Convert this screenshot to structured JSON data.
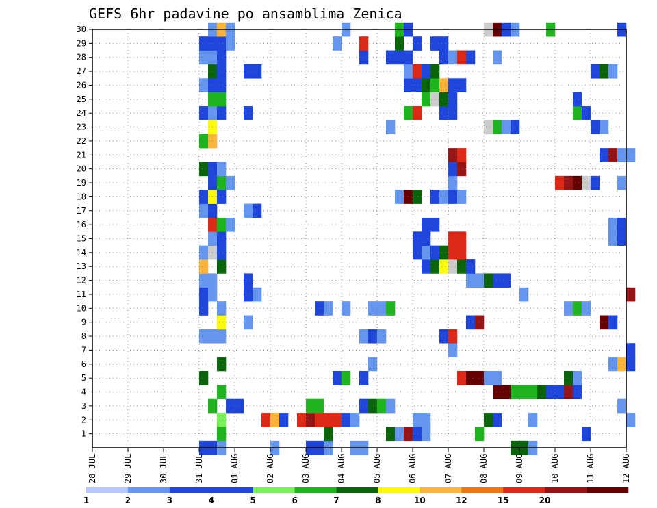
{
  "chart_data": {
    "type": "heatmap",
    "title": "GEFS 6hr padavine po ansamblima Zenica",
    "x_tick_labels": [
      "28 JUL",
      "29 JUL",
      "30 JUL",
      "31 JUL",
      "01 AUG",
      "02 AUG",
      "03 AUG",
      "04 AUG",
      "05 AUG",
      "06 AUG",
      "07 AUG",
      "08 AUG",
      "09 AUG",
      "10 AUG",
      "11 AUG",
      "12 AUG"
    ],
    "x_steps_per_day": 4,
    "y_tick_labels": [
      "1",
      "2",
      "3",
      "4",
      "5",
      "6",
      "7",
      "8",
      "9",
      "10",
      "11",
      "12",
      "13",
      "14",
      "15",
      "16",
      "17",
      "18",
      "19",
      "20",
      "21",
      "22",
      "23",
      "24",
      "25",
      "26",
      "27",
      "28",
      "29",
      "30"
    ],
    "ylim": [
      0,
      30
    ],
    "grid": true,
    "colorbar": {
      "labels": [
        "1",
        "2",
        "3",
        "4",
        "5",
        "6",
        "7",
        "8",
        "10",
        "12",
        "15",
        "20"
      ],
      "colors": [
        "#b4c8fa",
        "#6496f0",
        "#1e46dc",
        "#1e46dc",
        "#78f05a",
        "#1eb41e",
        "#0a640a",
        "#fafa0a",
        "#fab43c",
        "#f07814",
        "#dc2814",
        "#961414",
        "#640000"
      ]
    },
    "cells": [
      [
        0,
        12,
        3
      ],
      [
        0,
        13,
        2
      ],
      [
        0,
        14,
        1
      ],
      [
        0,
        20,
        1
      ],
      [
        0,
        24,
        2
      ],
      [
        0,
        25,
        2
      ],
      [
        0,
        26,
        1
      ],
      [
        0,
        29,
        1
      ],
      [
        0,
        30,
        1
      ],
      [
        1,
        14,
        5
      ],
      [
        1,
        26,
        6
      ],
      [
        1,
        33,
        6
      ],
      [
        1,
        34,
        1
      ],
      [
        1,
        35,
        11
      ],
      [
        1,
        36,
        2
      ],
      [
        1,
        37,
        1
      ],
      [
        1,
        43,
        5
      ],
      [
        1,
        55,
        2
      ],
      [
        2,
        14,
        4
      ],
      [
        2,
        19,
        10
      ],
      [
        2,
        20,
        8
      ],
      [
        2,
        21,
        2
      ],
      [
        2,
        23,
        10
      ],
      [
        2,
        24,
        11
      ],
      [
        2,
        25,
        10
      ],
      [
        2,
        26,
        10
      ],
      [
        2,
        27,
        10
      ],
      [
        2,
        28,
        3
      ],
      [
        2,
        29,
        1
      ],
      [
        2,
        36,
        1
      ],
      [
        2,
        37,
        1
      ],
      [
        2,
        44,
        6
      ],
      [
        2,
        45,
        2
      ],
      [
        2,
        49,
        1
      ],
      [
        2,
        60,
        1
      ],
      [
        3,
        13,
        5
      ],
      [
        3,
        15,
        2
      ],
      [
        3,
        16,
        2
      ],
      [
        3,
        24,
        5
      ],
      [
        3,
        25,
        5
      ],
      [
        3,
        30,
        3
      ],
      [
        3,
        31,
        6
      ],
      [
        3,
        32,
        5
      ],
      [
        3,
        33,
        1
      ],
      [
        3,
        59,
        1
      ],
      [
        4,
        14,
        5
      ],
      [
        4,
        45,
        12
      ],
      [
        4,
        46,
        12
      ],
      [
        4,
        47,
        5
      ],
      [
        4,
        48,
        5
      ],
      [
        4,
        49,
        5
      ],
      [
        4,
        50,
        6
      ],
      [
        4,
        51,
        2
      ],
      [
        4,
        52,
        3
      ],
      [
        4,
        53,
        11
      ],
      [
        4,
        54,
        3
      ],
      [
        5,
        12,
        6
      ],
      [
        5,
        27,
        3
      ],
      [
        5,
        28,
        5
      ],
      [
        5,
        30,
        2
      ],
      [
        5,
        41,
        10
      ],
      [
        5,
        42,
        12
      ],
      [
        5,
        43,
        12
      ],
      [
        5,
        44,
        1
      ],
      [
        5,
        45,
        1
      ],
      [
        5,
        53,
        6
      ],
      [
        5,
        54,
        1
      ],
      [
        6,
        14,
        6
      ],
      [
        6,
        31,
        1
      ],
      [
        6,
        58,
        1
      ],
      [
        6,
        59,
        8
      ],
      [
        6,
        60,
        2
      ],
      [
        7,
        40,
        1
      ],
      [
        7,
        60,
        2
      ],
      [
        8,
        12,
        1
      ],
      [
        8,
        13,
        1
      ],
      [
        8,
        14,
        1
      ],
      [
        8,
        30,
        1
      ],
      [
        8,
        31,
        2
      ],
      [
        8,
        32,
        1
      ],
      [
        8,
        39,
        3
      ],
      [
        8,
        40,
        10
      ],
      [
        9,
        14,
        7
      ],
      [
        9,
        17,
        1
      ],
      [
        9,
        42,
        3
      ],
      [
        9,
        43,
        11
      ],
      [
        9,
        57,
        12
      ],
      [
        9,
        58,
        2
      ],
      [
        10,
        12,
        2
      ],
      [
        10,
        14,
        1
      ],
      [
        10,
        25,
        3
      ],
      [
        10,
        26,
        1
      ],
      [
        10,
        28,
        1
      ],
      [
        10,
        31,
        1
      ],
      [
        10,
        32,
        1
      ],
      [
        10,
        33,
        5
      ],
      [
        10,
        53,
        1
      ],
      [
        10,
        54,
        5
      ],
      [
        10,
        55,
        1
      ],
      [
        11,
        12,
        2
      ],
      [
        11,
        13,
        1
      ],
      [
        11,
        17,
        2
      ],
      [
        11,
        18,
        1
      ],
      [
        11,
        48,
        1
      ],
      [
        11,
        60,
        11
      ],
      [
        12,
        12,
        1
      ],
      [
        12,
        13,
        1
      ],
      [
        12,
        17,
        2
      ],
      [
        12,
        42,
        1
      ],
      [
        12,
        43,
        1
      ],
      [
        12,
        44,
        6
      ],
      [
        12,
        45,
        3
      ],
      [
        12,
        46,
        3
      ],
      [
        13,
        12,
        8
      ],
      [
        13,
        14,
        6
      ],
      [
        13,
        37,
        2
      ],
      [
        13,
        38,
        6
      ],
      [
        13,
        39,
        7
      ],
      [
        13,
        40,
        13
      ],
      [
        13,
        41,
        6
      ],
      [
        13,
        42,
        2
      ],
      [
        14,
        12,
        1
      ],
      [
        14,
        13,
        13
      ],
      [
        14,
        14,
        3
      ],
      [
        14,
        36,
        3
      ],
      [
        14,
        37,
        1
      ],
      [
        14,
        38,
        3
      ],
      [
        14,
        39,
        6
      ],
      [
        14,
        40,
        10
      ],
      [
        14,
        41,
        10
      ],
      [
        15,
        13,
        1
      ],
      [
        15,
        14,
        3
      ],
      [
        15,
        36,
        3
      ],
      [
        15,
        37,
        3
      ],
      [
        15,
        40,
        10
      ],
      [
        15,
        41,
        10
      ],
      [
        15,
        58,
        1
      ],
      [
        15,
        59,
        3
      ],
      [
        16,
        13,
        10
      ],
      [
        16,
        14,
        5
      ],
      [
        16,
        15,
        1
      ],
      [
        16,
        37,
        3
      ],
      [
        16,
        38,
        3
      ],
      [
        16,
        58,
        1
      ],
      [
        16,
        59,
        3
      ],
      [
        17,
        12,
        1
      ],
      [
        17,
        13,
        3
      ],
      [
        17,
        17,
        1
      ],
      [
        17,
        18,
        3
      ],
      [
        18,
        12,
        3
      ],
      [
        18,
        13,
        7
      ],
      [
        18,
        14,
        3
      ],
      [
        18,
        34,
        1
      ],
      [
        18,
        35,
        12
      ],
      [
        18,
        36,
        6
      ],
      [
        18,
        38,
        2
      ],
      [
        18,
        39,
        1
      ],
      [
        18,
        40,
        3
      ],
      [
        18,
        41,
        1
      ],
      [
        19,
        13,
        2
      ],
      [
        19,
        14,
        5
      ],
      [
        19,
        15,
        1
      ],
      [
        19,
        40,
        1
      ],
      [
        19,
        52,
        10
      ],
      [
        19,
        53,
        11
      ],
      [
        19,
        54,
        12
      ],
      [
        19,
        55,
        13
      ],
      [
        19,
        56,
        2
      ],
      [
        19,
        59,
        1
      ],
      [
        20,
        12,
        6
      ],
      [
        20,
        13,
        2
      ],
      [
        20,
        14,
        1
      ],
      [
        20,
        40,
        2
      ],
      [
        20,
        41,
        11
      ],
      [
        21,
        40,
        11
      ],
      [
        21,
        41,
        10
      ],
      [
        21,
        57,
        3
      ],
      [
        21,
        58,
        11
      ],
      [
        21,
        59,
        1
      ],
      [
        21,
        60,
        1
      ],
      [
        22,
        12,
        5
      ],
      [
        22,
        13,
        8
      ],
      [
        23,
        13,
        7
      ],
      [
        23,
        33,
        1
      ],
      [
        23,
        44,
        13
      ],
      [
        23,
        45,
        5
      ],
      [
        23,
        46,
        1
      ],
      [
        23,
        47,
        2
      ],
      [
        23,
        56,
        2
      ],
      [
        23,
        57,
        1
      ],
      [
        24,
        12,
        3
      ],
      [
        24,
        13,
        1
      ],
      [
        24,
        14,
        2
      ],
      [
        24,
        17,
        2
      ],
      [
        24,
        35,
        5
      ],
      [
        24,
        36,
        10
      ],
      [
        24,
        39,
        2
      ],
      [
        24,
        40,
        2
      ],
      [
        24,
        54,
        5
      ],
      [
        24,
        55,
        3
      ],
      [
        25,
        13,
        5
      ],
      [
        25,
        14,
        5
      ],
      [
        25,
        37,
        5
      ],
      [
        25,
        38,
        13
      ],
      [
        25,
        39,
        6
      ],
      [
        25,
        40,
        3
      ],
      [
        25,
        54,
        2
      ],
      [
        26,
        12,
        1
      ],
      [
        26,
        13,
        3
      ],
      [
        26,
        14,
        3
      ],
      [
        26,
        35,
        2
      ],
      [
        26,
        36,
        3
      ],
      [
        26,
        37,
        6
      ],
      [
        26,
        38,
        5
      ],
      [
        26,
        39,
        8
      ],
      [
        26,
        40,
        3
      ],
      [
        26,
        41,
        3
      ],
      [
        27,
        13,
        6
      ],
      [
        27,
        14,
        3
      ],
      [
        27,
        17,
        2
      ],
      [
        27,
        18,
        2
      ],
      [
        27,
        35,
        1
      ],
      [
        27,
        36,
        10
      ],
      [
        27,
        37,
        3
      ],
      [
        27,
        38,
        6
      ],
      [
        27,
        56,
        3
      ],
      [
        27,
        57,
        6
      ],
      [
        27,
        58,
        1
      ],
      [
        28,
        12,
        1
      ],
      [
        28,
        13,
        1
      ],
      [
        28,
        14,
        3
      ],
      [
        28,
        30,
        2
      ],
      [
        28,
        33,
        3
      ],
      [
        28,
        34,
        3
      ],
      [
        28,
        35,
        3
      ],
      [
        28,
        39,
        3
      ],
      [
        28,
        40,
        1
      ],
      [
        28,
        41,
        10
      ],
      [
        28,
        42,
        3
      ],
      [
        28,
        45,
        1
      ],
      [
        29,
        12,
        3
      ],
      [
        29,
        13,
        3
      ],
      [
        29,
        14,
        2
      ],
      [
        29,
        15,
        1
      ],
      [
        29,
        27,
        1
      ],
      [
        29,
        30,
        10
      ],
      [
        29,
        34,
        6
      ],
      [
        29,
        36,
        2
      ],
      [
        29,
        38,
        3
      ],
      [
        29,
        39,
        2
      ],
      [
        30,
        13,
        1
      ],
      [
        30,
        14,
        8
      ],
      [
        30,
        15,
        1
      ],
      [
        30,
        28,
        1
      ],
      [
        30,
        34,
        5
      ],
      [
        30,
        35,
        2
      ],
      [
        30,
        44,
        13
      ],
      [
        30,
        45,
        12
      ],
      [
        30,
        46,
        3
      ],
      [
        30,
        47,
        1
      ],
      [
        30,
        51,
        5
      ],
      [
        30,
        59,
        2
      ],
      [
        0,
        48,
        6
      ],
      [
        0,
        47,
        6
      ],
      [
        0,
        49,
        1
      ]
    ]
  }
}
